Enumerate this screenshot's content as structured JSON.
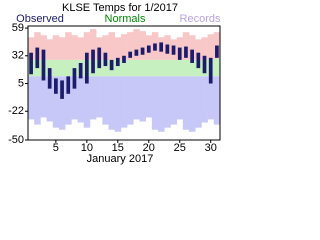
{
  "chart_data": {
    "type": "range",
    "title": "KLSE Temps for 1/2017",
    "xlabel": "January 2017",
    "x": [
      1,
      2,
      3,
      4,
      5,
      6,
      7,
      8,
      9,
      10,
      11,
      12,
      13,
      14,
      15,
      16,
      17,
      18,
      19,
      20,
      21,
      22,
      23,
      24,
      25,
      26,
      27,
      28,
      29,
      30,
      31
    ],
    "xlim": [
      0.5,
      31.5
    ],
    "xticks": [
      5,
      10,
      15,
      20,
      25,
      30
    ],
    "ylim": [
      -50,
      61
    ],
    "yticks": [
      59,
      32,
      5,
      -22,
      -50
    ],
    "series": [
      {
        "name": "Observed",
        "color": "#1c1c6b",
        "high": [
          35,
          40,
          38,
          20,
          10,
          8,
          12,
          20,
          25,
          35,
          38,
          40,
          35,
          28,
          30,
          32,
          36,
          38,
          40,
          42,
          44,
          45,
          43,
          42,
          40,
          41,
          38,
          35,
          32,
          30,
          42
        ],
        "low": [
          14,
          20,
          8,
          0,
          -5,
          -10,
          -5,
          0,
          10,
          5,
          15,
          20,
          22,
          18,
          22,
          25,
          30,
          32,
          33,
          35,
          37,
          36,
          34,
          33,
          28,
          30,
          25,
          20,
          15,
          5,
          30
        ]
      },
      {
        "name": "Normals",
        "color": "#008800",
        "band_color": "#c6f0c0",
        "high": [
          28,
          28,
          28,
          28,
          28,
          28,
          28,
          28,
          28,
          28,
          28,
          28,
          28,
          28,
          28,
          28,
          28,
          28,
          28,
          28,
          28,
          28,
          28,
          28,
          28,
          28,
          28,
          28,
          28,
          29,
          29
        ],
        "low": [
          12,
          12,
          12,
          12,
          12,
          12,
          12,
          12,
          12,
          12,
          12,
          12,
          12,
          12,
          12,
          12,
          12,
          12,
          12,
          12,
          12,
          12,
          12,
          12,
          12,
          12,
          12,
          12,
          12,
          12,
          12
        ]
      },
      {
        "name": "Records",
        "color": "#b9a2e6",
        "upper_color": "#f8c8c8",
        "lower_color": "#c8c8f8",
        "high": [
          50,
          55,
          52,
          48,
          52,
          50,
          55,
          52,
          50,
          55,
          58,
          50,
          52,
          55,
          50,
          53,
          55,
          58,
          56,
          52,
          55,
          50,
          52,
          48,
          50,
          55,
          52,
          48,
          50,
          53,
          55
        ],
        "low": [
          -30,
          -35,
          -28,
          -32,
          -38,
          -40,
          -35,
          -30,
          -33,
          -38,
          -30,
          -28,
          -35,
          -40,
          -42,
          -38,
          -35,
          -30,
          -32,
          -28,
          -40,
          -42,
          -38,
          -35,
          -30,
          -40,
          -42,
          -38,
          -33,
          -30,
          -35
        ]
      }
    ]
  }
}
